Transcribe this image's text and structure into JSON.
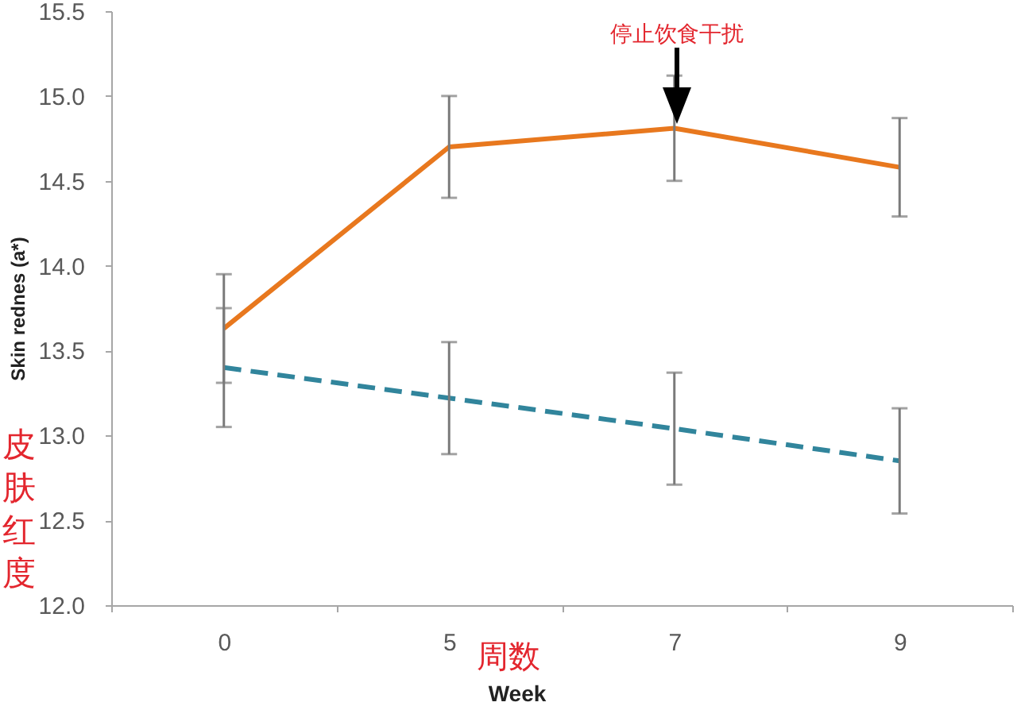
{
  "chart_data": {
    "type": "line",
    "xlabel": "Week",
    "ylabel": "Skin rednes (a*)",
    "categories": [
      "0",
      "5",
      "7",
      "9"
    ],
    "ylim": [
      12,
      15.5
    ],
    "yticks": [
      {
        "value": 12,
        "label": "12.0"
      },
      12.5,
      {
        "value": 13,
        "label": "13.0"
      },
      13.5,
      {
        "value": 14,
        "label": "14.0"
      },
      14.5,
      {
        "value": 15,
        "label": "15.0"
      },
      15.5
    ],
    "series": [
      {
        "color": "#e8781e",
        "line_style": "solid",
        "values": [
          13.63,
          14.7,
          14.81,
          14.58
        ],
        "errors": [
          0.32,
          0.3,
          0.31,
          0.29
        ]
      },
      {
        "color": "#31859c",
        "line_style": "dashed",
        "values": [
          13.4,
          13.22,
          13.04,
          12.85
        ],
        "errors": [
          0.35,
          0.33,
          0.33,
          0.31
        ]
      }
    ],
    "annotations": [
      "皮肤红度",
      "周数",
      "停止饮食干扰"
    ]
  }
}
